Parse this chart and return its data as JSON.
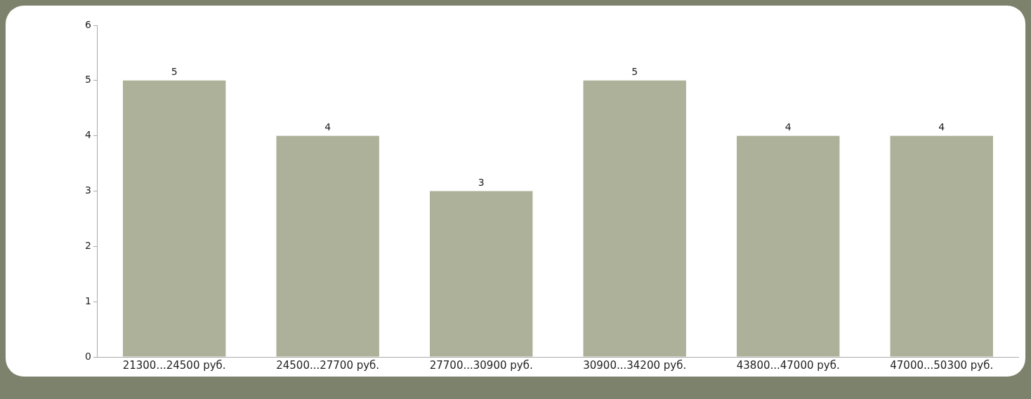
{
  "chart_data": {
    "type": "bar",
    "categories": [
      "21300...24500 руб.",
      "24500...27700 руб.",
      "27700...30900 руб.",
      "30900...34200 руб.",
      "43800...47000 руб.",
      "47000...50300 руб."
    ],
    "values": [
      5,
      4,
      3,
      5,
      4,
      4
    ],
    "color": "#adb199",
    "ylim": [
      0,
      6
    ],
    "yticks": [
      0,
      1,
      2,
      3,
      4,
      5,
      6
    ],
    "grid": false,
    "legend": false,
    "data_labels": true
  }
}
